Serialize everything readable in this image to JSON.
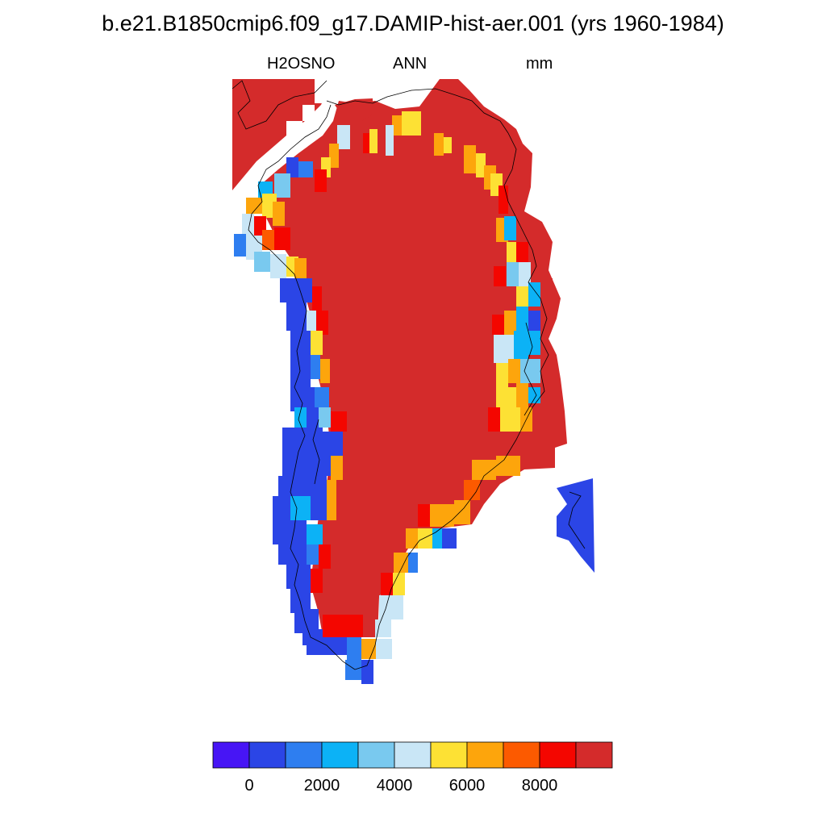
{
  "title": "b.e21.B1850cmip6.f09_g17.DAMIP-hist-aer.001 (yrs 1960-1984)",
  "variable": "H2OSNO",
  "season": "ANN",
  "units": "mm",
  "colorbar": {
    "colors": [
      "#4715f5",
      "#2b45e6",
      "#2e7ef0",
      "#0cb2f6",
      "#79c9ef",
      "#c9e6f6",
      "#fde134",
      "#fda50c",
      "#fc5a00",
      "#f40600",
      "#d42b2b"
    ],
    "tick_labels": [
      "0",
      "2000",
      "4000",
      "6000",
      "8000"
    ]
  },
  "map": {
    "description_colors": {
      "ice_sheet": "#d42b2b",
      "coastal_red": "#f40600",
      "coastal_blue": "#2b45e6"
    }
  }
}
